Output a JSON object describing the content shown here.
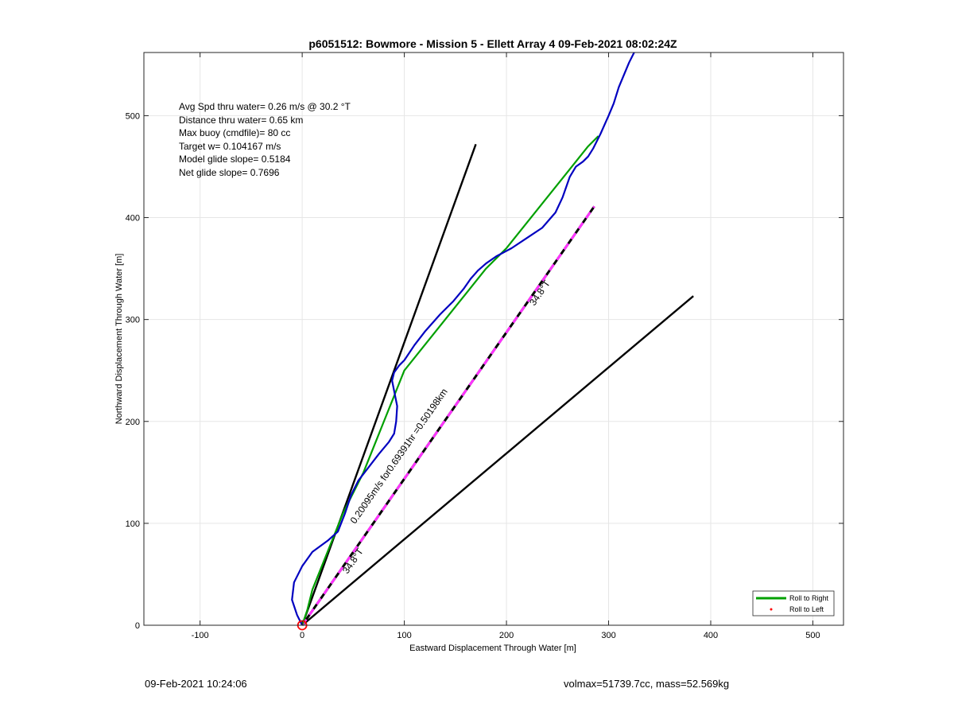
{
  "chart_data": {
    "type": "line",
    "title": "p6051512: Bowmore - Mission 5 - Ellett Array 4 09-Feb-2021 08:02:24Z",
    "xlabel": "Eastward Displacement Through Water [m]",
    "ylabel": "Northward Displacement Through Water [m]",
    "xlim": [
      -155,
      530
    ],
    "ylim": [
      0,
      562
    ],
    "xticks": [
      -100,
      0,
      100,
      200,
      300,
      400,
      500
    ],
    "yticks": [
      0,
      100,
      200,
      300,
      400,
      500
    ],
    "grid": true,
    "legend": {
      "position": "bottom-right",
      "entries": [
        {
          "label": "Roll to Right",
          "color": "#00a000",
          "style": "line"
        },
        {
          "label": "Roll to Left",
          "color": "#ff0000",
          "style": "dot"
        }
      ]
    },
    "stats": [
      "Avg Spd thru water=  0.26 m/s @  30.2 °T",
      "Distance thru water=  0.65 km",
      "Max buoy (cmdfile)= 80 cc",
      "Target w= 0.104167 m/s",
      "Model glide slope= 0.5184",
      "Net glide slope= 0.7696"
    ],
    "annotations": {
      "heading_upper": "34.8°T",
      "heading_lower": "34.8°T",
      "distance": "0.20095m/s for0.69391hr =0.50198km"
    },
    "series": [
      {
        "name": "Roll to Right",
        "role": "track-green",
        "color": "#00a000",
        "x": [
          0,
          5,
          10,
          20,
          30,
          40,
          50,
          60,
          70,
          80,
          90,
          100,
          120,
          140,
          160,
          180,
          200,
          220,
          240,
          260,
          280,
          290
        ],
        "y": [
          0,
          15,
          35,
          60,
          85,
          110,
          130,
          150,
          175,
          200,
          225,
          250,
          275,
          300,
          325,
          350,
          370,
          395,
          420,
          445,
          470,
          480
        ]
      },
      {
        "name": "",
        "role": "track-blue",
        "color": "#0000c0",
        "x": [
          0,
          -5,
          -10,
          -8,
          0,
          10,
          25,
          35,
          42,
          48,
          55,
          65,
          75,
          85,
          90,
          92,
          93,
          90,
          88,
          90,
          95,
          100,
          110,
          120,
          135,
          148,
          158,
          165,
          172,
          180,
          190,
          205,
          220,
          235,
          248,
          255,
          262,
          268,
          275,
          280,
          285,
          292,
          300,
          305,
          310,
          315,
          320,
          325
        ],
        "y": [
          0,
          10,
          25,
          42,
          58,
          72,
          83,
          92,
          110,
          128,
          142,
          155,
          168,
          180,
          188,
          200,
          215,
          230,
          240,
          248,
          255,
          260,
          275,
          288,
          305,
          318,
          330,
          340,
          348,
          355,
          362,
          370,
          380,
          390,
          405,
          420,
          440,
          450,
          455,
          460,
          468,
          482,
          500,
          512,
          528,
          540,
          552,
          562
        ]
      },
      {
        "name": "",
        "role": "cone-left",
        "color": "#000000",
        "x": [
          0,
          170
        ],
        "y": [
          0,
          472
        ]
      },
      {
        "name": "",
        "role": "cone-right",
        "color": "#000000",
        "x": [
          0,
          383
        ],
        "y": [
          0,
          323
        ]
      },
      {
        "name": "",
        "role": "heading-line",
        "color": "#000000",
        "x": [
          0,
          286
        ],
        "y": [
          0,
          411
        ]
      }
    ]
  },
  "footer": {
    "left": "09-Feb-2021 10:24:06",
    "right": "volmax=51739.7cc, mass=52.569kg"
  }
}
